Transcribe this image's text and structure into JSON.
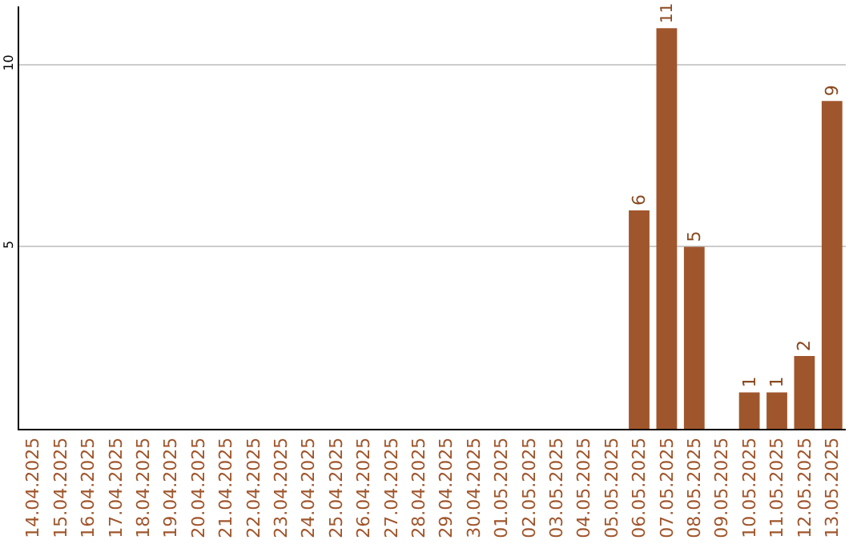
{
  "chart_data": {
    "type": "bar",
    "categories": [
      "14.04.2025",
      "15.04.2025",
      "16.04.2025",
      "17.04.2025",
      "18.04.2025",
      "19.04.2025",
      "20.04.2025",
      "21.04.2025",
      "22.04.2025",
      "23.04.2025",
      "24.04.2025",
      "25.04.2025",
      "26.04.2025",
      "27.04.2025",
      "28.04.2025",
      "29.04.2025",
      "30.04.2025",
      "01.05.2025",
      "02.05.2025",
      "03.05.2025",
      "04.05.2025",
      "05.05.2025",
      "06.05.2025",
      "07.05.2025",
      "08.05.2025",
      "09.05.2025",
      "10.05.2025",
      "11.05.2025",
      "12.05.2025",
      "13.05.2025"
    ],
    "values": [
      0,
      0,
      0,
      0,
      0,
      0,
      0,
      0,
      0,
      0,
      0,
      0,
      0,
      0,
      0,
      0,
      0,
      0,
      0,
      0,
      0,
      0,
      6,
      11,
      5,
      0,
      1,
      1,
      2,
      9
    ],
    "value_labels": [
      null,
      null,
      null,
      null,
      null,
      null,
      null,
      null,
      null,
      null,
      null,
      null,
      null,
      null,
      null,
      null,
      null,
      null,
      null,
      null,
      null,
      null,
      "6",
      "11",
      "5",
      null,
      "1",
      "1",
      "2",
      "9"
    ],
    "color": "#a0562c",
    "ylim": [
      0,
      11.6
    ],
    "yticks": [
      5,
      10
    ],
    "grid": "y"
  }
}
